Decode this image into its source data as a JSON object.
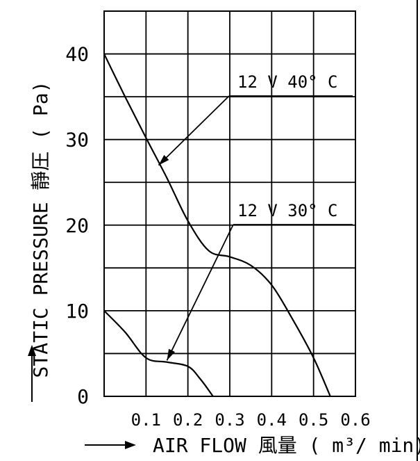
{
  "chart_data": {
    "type": "line",
    "title": "",
    "xlabel": "AIR FLOW 風量 ( m³/ min)",
    "ylabel": "STATIC PRESSURE 靜圧 ( Pa)",
    "xlim": [
      0,
      0.6
    ],
    "ylim": [
      0,
      45
    ],
    "x_ticks": [
      "0.1",
      "0.2",
      "0.3",
      "0.4",
      "0.5",
      "0.6"
    ],
    "y_ticks": [
      "0",
      "10",
      "20",
      "30",
      "40"
    ],
    "grid": true,
    "series": [
      {
        "name": "12 V 40° C",
        "x": [
          0,
          0.05,
          0.1,
          0.15,
          0.2,
          0.25,
          0.3,
          0.35,
          0.4,
          0.45,
          0.5,
          0.54
        ],
        "y": [
          40,
          35,
          30.2,
          25.5,
          20.5,
          17,
          16.3,
          15.3,
          13,
          9,
          4.5,
          0
        ]
      },
      {
        "name": "12 V 30° C",
        "x": [
          0,
          0.05,
          0.1,
          0.15,
          0.2,
          0.23,
          0.26
        ],
        "y": [
          10,
          7.5,
          4.5,
          4,
          3.5,
          2,
          0
        ]
      }
    ],
    "annotations": [
      {
        "text": "12 V 40° C",
        "points_to": [
          0.13,
          27
        ]
      },
      {
        "text": "12 V 30° C",
        "points_to": [
          0.15,
          4.2
        ]
      }
    ]
  },
  "labels": {
    "y_prefix_arrow": "→",
    "x_prefix_arrow": "→"
  }
}
